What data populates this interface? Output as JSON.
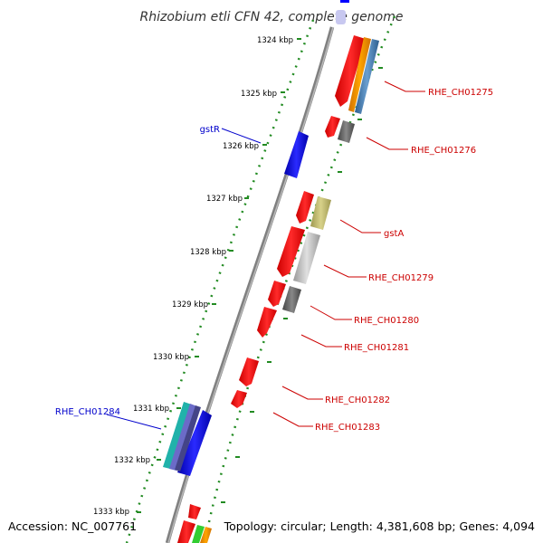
{
  "map": {
    "title": "Rhizobium etli CFN 42, complete genome",
    "accession_text": "Accession: NC_007761",
    "summary_text": "Topology: circular; Length: 4,381,608 bp; Genes: 4,094"
  },
  "ticks": [
    {
      "label": "1324 kbp"
    },
    {
      "label": "1325 kbp"
    },
    {
      "label": "1326 kbp"
    },
    {
      "label": "1327 kbp"
    },
    {
      "label": "1328 kbp"
    },
    {
      "label": "1329 kbp"
    },
    {
      "label": "1330 kbp"
    },
    {
      "label": "1331 kbp"
    },
    {
      "label": "1332 kbp"
    },
    {
      "label": "1333 kbp"
    }
  ],
  "gene_labels": [
    {
      "text": "RHE_CH01275",
      "strand": "forward"
    },
    {
      "text": "RHE_CH01276",
      "strand": "forward"
    },
    {
      "text": "gstR",
      "strand": "reverse"
    },
    {
      "text": "gstA",
      "strand": "forward"
    },
    {
      "text": "RHE_CH01279",
      "strand": "forward"
    },
    {
      "text": "RHE_CH01280",
      "strand": "forward"
    },
    {
      "text": "RHE_CH01281",
      "strand": "forward"
    },
    {
      "text": "RHE_CH01282",
      "strand": "forward"
    },
    {
      "text": "RHE_CH01283",
      "strand": "forward"
    },
    {
      "text": "RHE_CH01284",
      "strand": "reverse"
    }
  ],
  "colors": {
    "forward_label": "#cc0000",
    "reverse_label": "#0000cc",
    "backbone": "#808080",
    "tick_dots": "#228b22",
    "gene_red": "#ff0000",
    "gene_blue": "#0000ff",
    "gene_gray": "#666666",
    "gene_lightgray": "#bbbbbb",
    "gene_khaki": "#bdb76b",
    "gene_orange": "#ff8c00",
    "gene_steelblue": "#4682b4",
    "gene_cyan": "#20b2aa",
    "gene_green": "#32cd32"
  }
}
